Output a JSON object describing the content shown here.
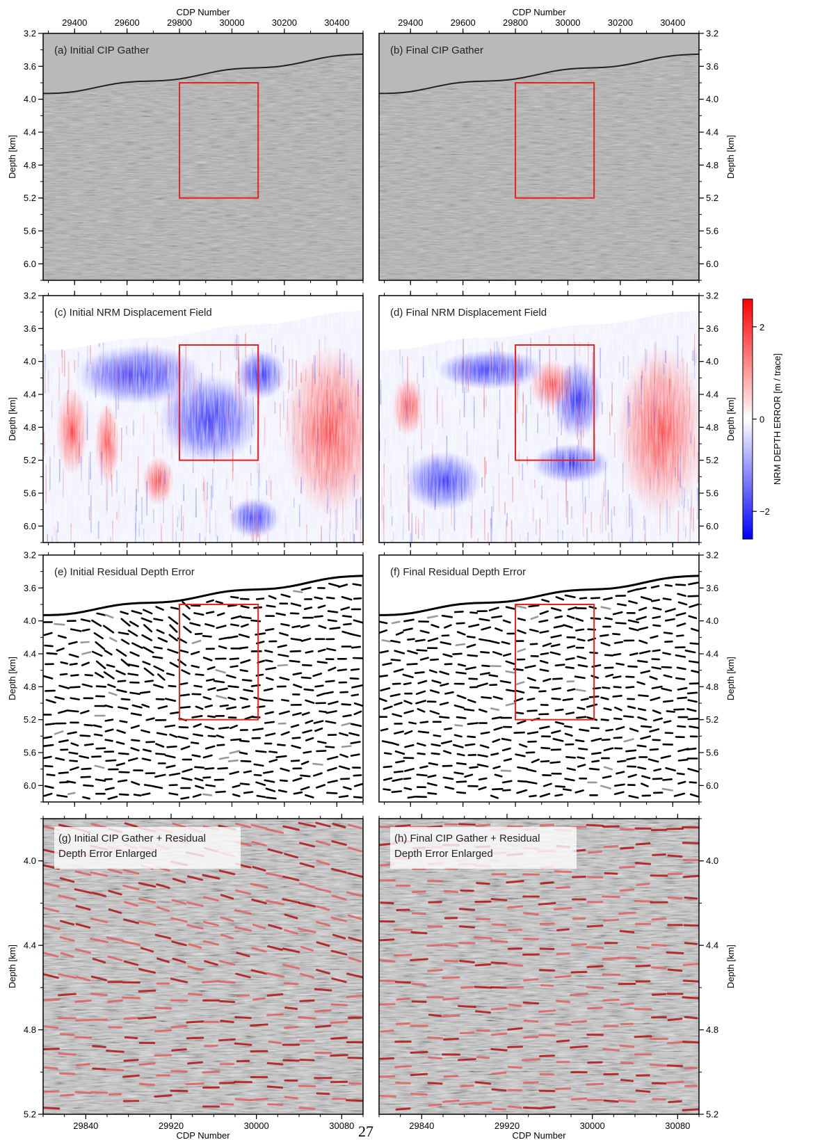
{
  "page_number": "27",
  "chart_data": {
    "type": "heatmap",
    "x_axis_label": "CDP Number",
    "y_axis_label": "Depth [km]",
    "x_ticks_overview": [
      "29400",
      "29600",
      "29800",
      "30000",
      "30200",
      "30400"
    ],
    "x_range_overview": [
      29280,
      30500
    ],
    "y_ticks_overview": [
      "3.2",
      "3.6",
      "4.0",
      "4.4",
      "4.8",
      "5.2",
      "5.6",
      "6.0"
    ],
    "y_range_overview": [
      3.2,
      6.2
    ],
    "x_ticks_enlarged": [
      "29840",
      "29920",
      "30000",
      "30080"
    ],
    "x_range_enlarged": [
      29800,
      30100
    ],
    "y_ticks_enlarged": [
      "4.0",
      "4.4",
      "4.8",
      "5.2"
    ],
    "y_range_enlarged": [
      3.8,
      5.2
    ],
    "highlight_box": {
      "x": [
        29800,
        30100
      ],
      "y": [
        3.8,
        5.2
      ],
      "color": "#e8211c"
    },
    "colorbar": {
      "label": "NRM DEPTH ERROR [m / trace]",
      "ticks": [
        "2",
        "0",
        "−2"
      ],
      "range": [
        -2.6,
        2.6
      ],
      "colors": [
        "#0000ff",
        "#ffffff",
        "#ff0000"
      ]
    },
    "panels": [
      {
        "label": "(a) Initial CIP Gather",
        "kind": "seismic"
      },
      {
        "label": "(b) Final CIP Gather",
        "kind": "seismic"
      },
      {
        "label": "(c) Initial NRM Displacement Field",
        "kind": "displacement"
      },
      {
        "label": "(d) Final NRM Displacement Field",
        "kind": "displacement"
      },
      {
        "label": "(e) Initial Residual Depth Error",
        "kind": "residual"
      },
      {
        "label": "(f) Final Residual Depth Error",
        "kind": "residual"
      },
      {
        "label_lines": [
          "(g) Initial CIP Gather + Residual",
          "Depth Error Enlarged"
        ],
        "kind": "enlarged"
      },
      {
        "label_lines": [
          "(h) Final CIP Gather + Residual",
          "Depth Error Enlarged"
        ],
        "kind": "enlarged"
      }
    ]
  }
}
